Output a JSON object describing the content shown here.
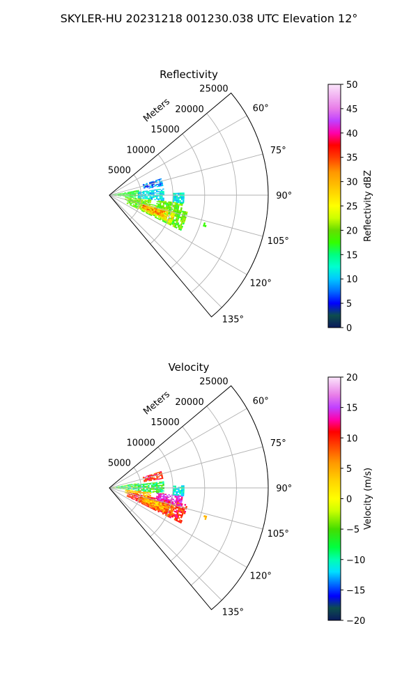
{
  "figure": {
    "suptitle": "SKYLER-HU  20231218  001230.038 UTC Elevation 12°"
  },
  "colors": {
    "grid": "#b0b0b0",
    "frame": "#000000"
  },
  "chart_data": [
    {
      "type": "heatmap",
      "subtype": "polar-sector-ppi",
      "title": "Reflectivity",
      "radial_label": "Meters",
      "r_ticks": [
        5000,
        10000,
        15000,
        20000,
        25000
      ],
      "r_tick_labels": [
        "5000",
        "10000",
        "15000",
        "20000",
        "25000"
      ],
      "r_max": 25000,
      "azimuth_range_deg": [
        50,
        140
      ],
      "theta_ticks": [
        60,
        75,
        90,
        105,
        120,
        135
      ],
      "theta_tick_labels": [
        "60°",
        "75°",
        "90°",
        "105°",
        "120°",
        "135°"
      ],
      "grid": true,
      "colorbar": {
        "label": "Reflectivity dBZ",
        "min": 0,
        "max": 50,
        "ticks": [
          0,
          5,
          10,
          15,
          20,
          25,
          30,
          35,
          40,
          45,
          50
        ],
        "tick_labels": [
          "0",
          "5",
          "10",
          "15",
          "20",
          "25",
          "30",
          "35",
          "40",
          "45",
          "50"
        ],
        "stops": [
          {
            "v": 0,
            "c": "#0a1a5c"
          },
          {
            "v": 2.5,
            "c": "#0d4d4d"
          },
          {
            "v": 5,
            "c": "#0000ff"
          },
          {
            "v": 7.5,
            "c": "#0070ff"
          },
          {
            "v": 10,
            "c": "#00c8ff"
          },
          {
            "v": 12.5,
            "c": "#00ffd0"
          },
          {
            "v": 15,
            "c": "#00ff80"
          },
          {
            "v": 17.5,
            "c": "#33ff00"
          },
          {
            "v": 20,
            "c": "#66dd00"
          },
          {
            "v": 22.5,
            "c": "#ccff00"
          },
          {
            "v": 25,
            "c": "#ffff00"
          },
          {
            "v": 28,
            "c": "#ffd200"
          },
          {
            "v": 32,
            "c": "#ff9600"
          },
          {
            "v": 35,
            "c": "#ff3c00"
          },
          {
            "v": 37.5,
            "c": "#ff0000"
          },
          {
            "v": 40,
            "c": "#ff00aa"
          },
          {
            "v": 42.5,
            "c": "#c040ff"
          },
          {
            "v": 45,
            "c": "#e87ce8"
          },
          {
            "v": 50,
            "c": "#fbe6fb"
          }
        ]
      },
      "echoes": [
        {
          "az_from": 80,
          "az_to": 95,
          "r_from": 300,
          "r_to": 4500,
          "value": 17,
          "spread": 2
        },
        {
          "az_from": 83,
          "az_to": 96,
          "r_from": 4500,
          "r_to": 8500,
          "value": 11,
          "spread": 3
        },
        {
          "az_from": 72,
          "az_to": 80,
          "r_from": 5500,
          "r_to": 8500,
          "value": 8,
          "spread": 4
        },
        {
          "az_from": 96,
          "az_to": 107,
          "r_from": 2500,
          "r_to": 6500,
          "value": 20,
          "spread": 3
        },
        {
          "az_from": 102,
          "az_to": 116,
          "r_from": 3000,
          "r_to": 12500,
          "value": 19,
          "spread": 3
        },
        {
          "az_from": 104,
          "az_to": 114,
          "r_from": 5000,
          "r_to": 10500,
          "value": 26,
          "spread": 4
        },
        {
          "az_from": 106,
          "az_to": 112,
          "r_from": 5500,
          "r_to": 9000,
          "value": 32,
          "spread": 4
        },
        {
          "az_from": 96,
          "az_to": 104,
          "r_from": 7500,
          "r_to": 11500,
          "value": 19,
          "spread": 3
        },
        {
          "az_from": 88,
          "az_to": 96,
          "r_from": 10000,
          "r_to": 11800,
          "value": 12,
          "spread": 3
        },
        {
          "az_from": 106,
          "az_to": 108,
          "r_from": 15500,
          "r_to": 16000,
          "value": 17,
          "spread": 1
        }
      ]
    },
    {
      "type": "heatmap",
      "subtype": "polar-sector-ppi",
      "title": "Velocity",
      "radial_label": "Meters",
      "r_ticks": [
        5000,
        10000,
        15000,
        20000,
        25000
      ],
      "r_tick_labels": [
        "5000",
        "10000",
        "15000",
        "20000",
        "25000"
      ],
      "r_max": 25000,
      "azimuth_range_deg": [
        50,
        140
      ],
      "theta_ticks": [
        60,
        75,
        90,
        105,
        120,
        135
      ],
      "theta_tick_labels": [
        "60°",
        "75°",
        "90°",
        "105°",
        "120°",
        "135°"
      ],
      "grid": true,
      "colorbar": {
        "label": "Velocity (m/s)",
        "min": -20,
        "max": 20,
        "ticks": [
          -20,
          -15,
          -10,
          -5,
          0,
          5,
          10,
          15,
          20
        ],
        "tick_labels": [
          "−20",
          "−15",
          "−10",
          "−5",
          "0",
          "5",
          "10",
          "15",
          "20"
        ],
        "stops": [
          {
            "v": -20,
            "c": "#0a1a5c"
          },
          {
            "v": -18,
            "c": "#0d4d4d"
          },
          {
            "v": -16,
            "c": "#0000ff"
          },
          {
            "v": -14,
            "c": "#0070ff"
          },
          {
            "v": -12,
            "c": "#00e0ff"
          },
          {
            "v": -10,
            "c": "#00ffb0"
          },
          {
            "v": -8,
            "c": "#00ff40"
          },
          {
            "v": -5,
            "c": "#44dd00"
          },
          {
            "v": -2,
            "c": "#ccff00"
          },
          {
            "v": 0,
            "c": "#ffff00"
          },
          {
            "v": 3,
            "c": "#ffd200"
          },
          {
            "v": 6,
            "c": "#ff9600"
          },
          {
            "v": 9,
            "c": "#ff3c00"
          },
          {
            "v": 11,
            "c": "#ff0000"
          },
          {
            "v": 13,
            "c": "#ff00aa"
          },
          {
            "v": 15,
            "c": "#c040ff"
          },
          {
            "v": 17,
            "c": "#e87ce8"
          },
          {
            "v": 20,
            "c": "#fbe6fb"
          }
        ]
      },
      "echoes": [
        {
          "az_from": 80,
          "az_to": 95,
          "r_from": 300,
          "r_to": 4500,
          "value": -6,
          "spread": 6
        },
        {
          "az_from": 83,
          "az_to": 96,
          "r_from": 4500,
          "r_to": 8500,
          "value": -7,
          "spread": 4
        },
        {
          "az_from": 72,
          "az_to": 80,
          "r_from": 5500,
          "r_to": 8500,
          "value": 10,
          "spread": 3
        },
        {
          "az_from": 96,
          "az_to": 107,
          "r_from": 2500,
          "r_to": 6500,
          "value": 4,
          "spread": 5
        },
        {
          "az_from": 102,
          "az_to": 116,
          "r_from": 3000,
          "r_to": 12500,
          "value": 10,
          "spread": 3
        },
        {
          "az_from": 104,
          "az_to": 114,
          "r_from": 5000,
          "r_to": 10500,
          "value": 7,
          "spread": 3
        },
        {
          "az_from": 106,
          "az_to": 112,
          "r_from": 5500,
          "r_to": 9000,
          "value": 3,
          "spread": 3
        },
        {
          "az_from": 96,
          "az_to": 104,
          "r_from": 7500,
          "r_to": 11500,
          "value": 14,
          "spread": 2
        },
        {
          "az_from": 88,
          "az_to": 96,
          "r_from": 10000,
          "r_to": 11800,
          "value": -11,
          "spread": 2
        },
        {
          "az_from": 106,
          "az_to": 108,
          "r_from": 15500,
          "r_to": 16000,
          "value": 4,
          "spread": 1
        }
      ]
    }
  ]
}
